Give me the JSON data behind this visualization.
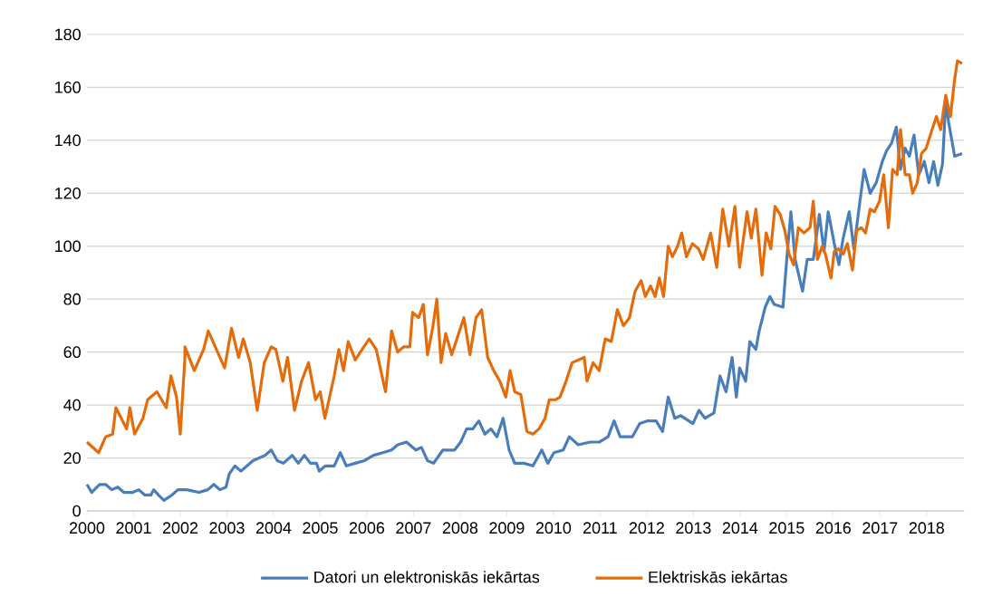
{
  "chart_data": {
    "type": "line",
    "xlim": [
      2000,
      2018.8
    ],
    "xticks": [
      2000,
      2001,
      2002,
      2003,
      2004,
      2005,
      2006,
      2007,
      2008,
      2009,
      2010,
      2011,
      2012,
      2013,
      2014,
      2015,
      2016,
      2017,
      2018
    ],
    "ylim": [
      0,
      180
    ],
    "yticks": [
      0,
      20,
      40,
      60,
      80,
      100,
      120,
      140,
      160,
      180
    ],
    "grid": "y",
    "legend": "bottom",
    "line_style": "solid",
    "marker": "none",
    "series": [
      {
        "name": "Datori un elektroniskās iekārtas",
        "color": "#4a7ebb",
        "x": [
          2000.0,
          2000.1,
          2000.27,
          2000.4,
          2000.53,
          2000.66,
          2000.79,
          2000.98,
          2001.11,
          2001.24,
          2001.37,
          2001.43,
          2001.56,
          2001.65,
          2001.82,
          2001.95,
          2002.14,
          2002.4,
          2002.59,
          2002.72,
          2002.85,
          2002.98,
          2003.05,
          2003.17,
          2003.3,
          2003.43,
          2003.56,
          2003.69,
          2003.82,
          2003.95,
          2004.08,
          2004.21,
          2004.4,
          2004.53,
          2004.66,
          2004.79,
          2004.92,
          2004.98,
          2005.11,
          2005.3,
          2005.43,
          2005.56,
          2005.75,
          2005.95,
          2006.14,
          2006.34,
          2006.53,
          2006.66,
          2006.85,
          2007.05,
          2007.17,
          2007.3,
          2007.43,
          2007.63,
          2007.88,
          2008.01,
          2008.14,
          2008.27,
          2008.4,
          2008.53,
          2008.66,
          2008.79,
          2008.92,
          2009.05,
          2009.17,
          2009.37,
          2009.56,
          2009.75,
          2009.88,
          2010.01,
          2010.21,
          2010.34,
          2010.53,
          2010.79,
          2010.98,
          2011.17,
          2011.3,
          2011.43,
          2011.69,
          2011.85,
          2012.01,
          2012.2,
          2012.34,
          2012.46,
          2012.6,
          2012.73,
          2012.99,
          2013.12,
          2013.25,
          2013.44,
          2013.57,
          2013.7,
          2013.83,
          2013.92,
          2013.99,
          2014.12,
          2014.21,
          2014.34,
          2014.41,
          2014.54,
          2014.64,
          2014.73,
          2014.92,
          2015.01,
          2015.09,
          2015.18,
          2015.34,
          2015.44,
          2015.57,
          2015.7,
          2015.8,
          2015.89,
          2016.02,
          2016.12,
          2016.21,
          2016.34,
          2016.44,
          2016.57,
          2016.66,
          2016.79,
          2016.92,
          2017.05,
          2017.14,
          2017.25,
          2017.35,
          2017.44,
          2017.54,
          2017.63,
          2017.73,
          2017.83,
          2017.95,
          2018.05,
          2018.15,
          2018.24,
          2018.34,
          2018.41,
          2018.47,
          2018.6,
          2018.76
        ],
        "values": [
          10,
          7,
          10,
          10,
          8,
          9,
          7,
          7,
          8,
          6,
          6,
          8,
          5.5,
          4,
          6,
          8,
          8,
          7,
          8,
          10,
          8,
          9,
          14,
          17,
          15,
          17,
          19,
          20,
          21,
          23,
          19,
          18,
          21,
          18,
          21,
          18,
          18,
          15,
          17,
          17,
          22,
          17,
          18,
          19,
          21,
          22,
          23,
          25,
          26,
          23,
          24,
          19,
          18,
          23,
          23,
          26,
          31,
          31,
          34,
          29,
          31,
          28,
          35,
          23,
          18,
          18,
          17,
          23,
          18,
          22,
          23,
          28,
          25,
          26,
          26,
          28,
          34,
          28,
          28,
          33,
          34,
          34,
          30,
          43,
          35,
          36,
          33,
          38,
          35,
          37,
          51,
          45,
          58,
          43,
          54,
          49,
          64,
          61,
          68,
          77,
          81,
          78,
          77,
          97,
          113,
          95,
          83,
          95,
          95,
          112,
          98,
          113,
          101,
          93,
          103,
          113,
          99,
          117,
          129,
          120,
          124,
          132,
          136,
          139,
          145,
          129,
          137,
          134,
          142,
          127,
          132,
          124,
          132,
          123,
          131,
          155,
          147,
          134,
          135
        ]
      },
      {
        "name": "Elektriskās iekārtas",
        "color": "#e46c0a",
        "x": [
          2000.0,
          2000.25,
          2000.4,
          2000.55,
          2000.62,
          2000.85,
          2000.92,
          2001.02,
          2001.2,
          2001.3,
          2001.5,
          2001.7,
          2001.8,
          2001.92,
          2002.0,
          2002.1,
          2002.1,
          2002.3,
          2002.5,
          2002.6,
          2002.8,
          2002.95,
          2003.1,
          2003.25,
          2003.35,
          2003.5,
          2003.65,
          2003.8,
          2003.95,
          2004.05,
          2004.2,
          2004.3,
          2004.45,
          2004.6,
          2004.75,
          2004.9,
          2005.0,
          2005.1,
          2005.3,
          2005.4,
          2005.5,
          2005.6,
          2005.75,
          2005.9,
          2006.05,
          2006.2,
          2006.3,
          2006.4,
          2006.53,
          2006.66,
          2006.79,
          2006.92,
          2006.98,
          2007.11,
          2007.21,
          2007.3,
          2007.41,
          2007.5,
          2007.59,
          2007.69,
          2007.82,
          2007.95,
          2008.08,
          2008.21,
          2008.34,
          2008.46,
          2008.59,
          2008.72,
          2008.85,
          2008.98,
          2009.07,
          2009.17,
          2009.3,
          2009.43,
          2009.56,
          2009.69,
          2009.82,
          2009.91,
          2010.04,
          2010.14,
          2010.27,
          2010.4,
          2010.53,
          2010.66,
          2010.72,
          2010.85,
          2010.98,
          2011.11,
          2011.24,
          2011.37,
          2011.5,
          2011.63,
          2011.75,
          2011.88,
          2011.97,
          2012.08,
          2012.18,
          2012.27,
          2012.36,
          2012.46,
          2012.55,
          2012.66,
          2012.75,
          2012.85,
          2012.98,
          2013.11,
          2013.21,
          2013.37,
          2013.5,
          2013.63,
          2013.76,
          2013.89,
          2013.99,
          2014.15,
          2014.24,
          2014.34,
          2014.47,
          2014.56,
          2014.66,
          2014.75,
          2014.86,
          2014.96,
          2015.05,
          2015.15,
          2015.25,
          2015.37,
          2015.5,
          2015.57,
          2015.66,
          2015.76,
          2015.83,
          2015.95,
          2016.02,
          2016.11,
          2016.21,
          2016.3,
          2016.41,
          2016.5,
          2016.6,
          2016.69,
          2016.79,
          2016.88,
          2016.99,
          2017.08,
          2017.18,
          2017.27,
          2017.37,
          2017.44,
          2017.54,
          2017.63,
          2017.7,
          2017.8,
          2017.89,
          2017.99,
          2018.08,
          2018.21,
          2018.3,
          2018.41,
          2018.51,
          2018.6,
          2018.66,
          2018.76
        ],
        "values": [
          26,
          22,
          28,
          29,
          39,
          31,
          39,
          29,
          35,
          42,
          45,
          39,
          51,
          43,
          29,
          58,
          62,
          53,
          61,
          68,
          60,
          54,
          69,
          58,
          65,
          56,
          38,
          56,
          62,
          61,
          49,
          58,
          38,
          49,
          56,
          42,
          45,
          35,
          51,
          61,
          53,
          64,
          57,
          61,
          65,
          61,
          53,
          45,
          68,
          60,
          62,
          62,
          75,
          73,
          78,
          59,
          69,
          80,
          56,
          67,
          59,
          66,
          73,
          59,
          73,
          76,
          58,
          53,
          49,
          43,
          53,
          45,
          44,
          30,
          29,
          31,
          35,
          42,
          42,
          43,
          49,
          56,
          57,
          58,
          49,
          56,
          53,
          65,
          64,
          76,
          70,
          73,
          83,
          87,
          81,
          85,
          81,
          88,
          81,
          100,
          96,
          100,
          105,
          96,
          101,
          99,
          95,
          105,
          92,
          114,
          100,
          115,
          92,
          113,
          103,
          114,
          89,
          105,
          99,
          115,
          112,
          106,
          97,
          93,
          107,
          105,
          107,
          117,
          95,
          100,
          97,
          88,
          98,
          99,
          97,
          101,
          91,
          106,
          107,
          105,
          114,
          113,
          117,
          127,
          107,
          129,
          127,
          144,
          127,
          127,
          120,
          124,
          135,
          137,
          142,
          149,
          144,
          157,
          149,
          163,
          170,
          169
        ]
      }
    ]
  }
}
